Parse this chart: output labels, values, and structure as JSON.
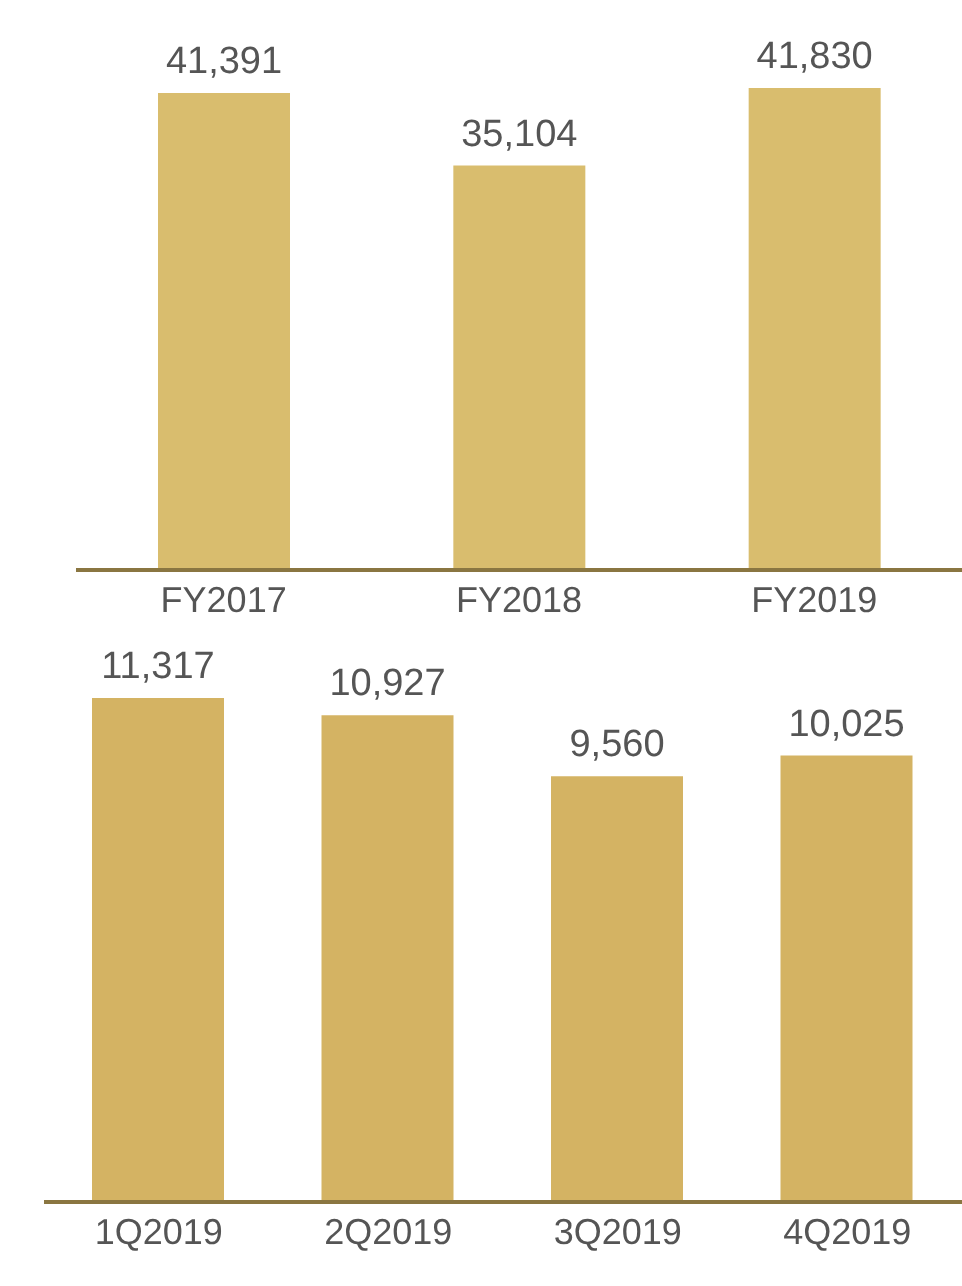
{
  "chart_data": [
    {
      "type": "bar",
      "categories": [
        "FY2017",
        "FY2018",
        "FY2019"
      ],
      "values": [
        41391,
        35104,
        41830
      ],
      "value_labels": [
        "41,391",
        "35,104",
        "41,830"
      ],
      "color": "#d9bd6e",
      "grid": false,
      "legend": false
    },
    {
      "type": "bar",
      "categories": [
        "1Q2019",
        "2Q2019",
        "3Q2019",
        "4Q2019"
      ],
      "values": [
        11317,
        10927,
        9560,
        10025
      ],
      "value_labels": [
        "11,317",
        "10,927",
        "9,560",
        "10,025"
      ],
      "color": "#d4b363",
      "grid": false,
      "legend": false
    }
  ]
}
